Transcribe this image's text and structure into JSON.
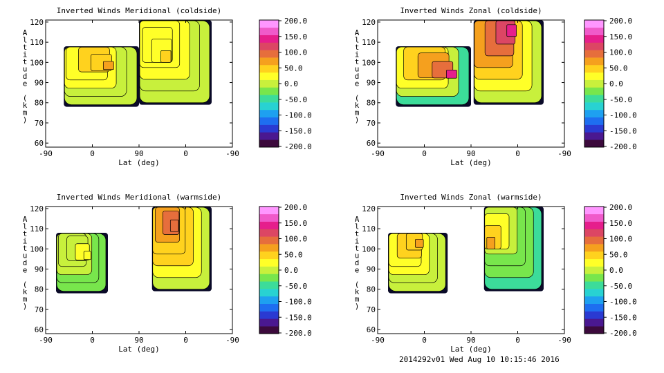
{
  "footer": "2014292v01 Wed Aug 10 10:15:46 2016",
  "colormap": [
    "#3c0a3c",
    "#4a1890",
    "#2a3ad2",
    "#1e6ef0",
    "#1ea0f0",
    "#28d2d2",
    "#3cdc9a",
    "#78e64c",
    "#c8f03c",
    "#ffff28",
    "#ffd21e",
    "#f5a01e",
    "#e66e3c",
    "#dc4664",
    "#e61e8c",
    "#f05aca",
    "#ff96ff"
  ],
  "colorbar": {
    "ticks": [
      "200.0",
      "150.0",
      "100.0",
      "50.0",
      "0.0",
      "-50.0",
      "-100.0",
      "-150.0",
      "-200.0"
    ],
    "range": [
      -200,
      200
    ]
  },
  "chart_data": [
    {
      "type": "heatmap",
      "title": "Inverted Winds Meridional (coldside)",
      "xlabel": "Lat (deg)",
      "ylabel": "Altitude (km)",
      "x_ticks": [
        "-90",
        "0",
        "90",
        "0",
        "-90"
      ],
      "y_ticks": [
        "120",
        "110",
        "100",
        "90",
        "80",
        "70",
        "60"
      ],
      "ylim": [
        58,
        121
      ],
      "blocks": [
        {
          "x": [
            -55,
            90
          ],
          "y": [
            78,
            108
          ],
          "base": -10,
          "center": [
            45,
            97
          ],
          "peak": 60
        },
        {
          "x": [
            90,
            230
          ],
          "y": [
            79,
            121
          ],
          "base": 0,
          "center": [
            150,
            100
          ],
          "peak": 40
        }
      ]
    },
    {
      "type": "heatmap",
      "title": "Inverted Winds Zonal (coldside)",
      "xlabel": "Lat (deg)",
      "ylabel": "Altitude (km)",
      "x_ticks": [
        "-90",
        "0",
        "90",
        "0",
        "-90"
      ],
      "y_ticks": [
        "120",
        "110",
        "100",
        "90",
        "80",
        "70",
        "60"
      ],
      "ylim": [
        58,
        121
      ],
      "blocks": [
        {
          "x": [
            -55,
            90
          ],
          "y": [
            78,
            108
          ],
          "base": -40,
          "center": [
            70,
            92
          ],
          "peak": 130
        },
        {
          "x": [
            95,
            230
          ],
          "y": [
            79,
            121
          ],
          "base": 10,
          "center": [
            180,
            115
          ],
          "peak": 130
        }
      ]
    },
    {
      "type": "heatmap",
      "title": "Inverted Winds Meridional (warmside)",
      "xlabel": "Lat (deg)",
      "ylabel": "Altitude (km)",
      "x_ticks": [
        "-90",
        "0",
        "90",
        "0",
        "-90"
      ],
      "y_ticks": [
        "120",
        "110",
        "100",
        "90",
        "80",
        "70",
        "60"
      ],
      "ylim": [
        58,
        121
      ],
      "blocks": [
        {
          "x": [
            -70,
            30
          ],
          "y": [
            78,
            108
          ],
          "base": -20,
          "center": [
            0,
            95
          ],
          "peak": 20
        },
        {
          "x": [
            115,
            230
          ],
          "y": [
            79,
            121
          ],
          "base": 10,
          "center": [
            165,
            110
          ],
          "peak": 100
        }
      ]
    },
    {
      "type": "heatmap",
      "title": "Inverted Winds Zonal (warmside)",
      "xlabel": "Lat (deg)",
      "ylabel": "Altitude (km)",
      "x_ticks": [
        "-90",
        "0",
        "90",
        "0",
        "-90"
      ],
      "y_ticks": [
        "120",
        "110",
        "100",
        "90",
        "80",
        "70",
        "60"
      ],
      "ylim": [
        58,
        121
      ],
      "blocks": [
        {
          "x": [
            -70,
            45
          ],
          "y": [
            78,
            108
          ],
          "base": -10,
          "center": [
            0,
            102
          ],
          "peak": 60
        },
        {
          "x": [
            115,
            230
          ],
          "y": [
            79,
            121
          ],
          "base": -50,
          "center": [
            130,
            100
          ],
          "peak": 60
        }
      ]
    }
  ]
}
